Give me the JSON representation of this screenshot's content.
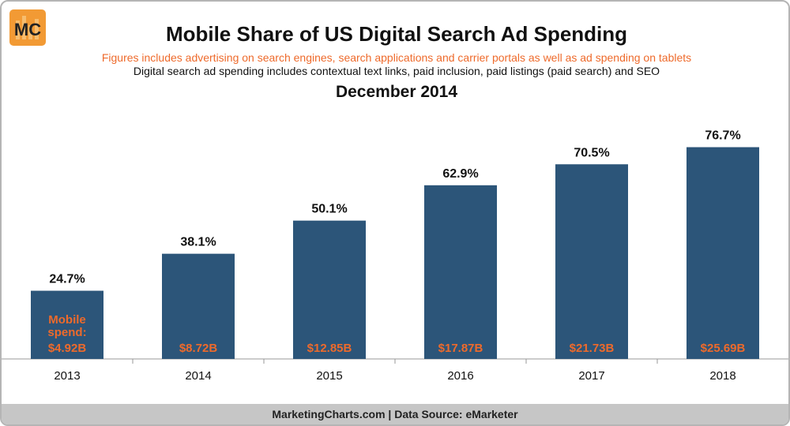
{
  "header": {
    "logo_text": "MC",
    "title": "Mobile Share of US Digital Search Ad Spending",
    "subtitle_note": "Figures includes advertising on search engines, search applications and carrier portals as well as ad spending on tablets",
    "subtitle_definition": "Digital search ad spending includes contextual text links, paid inclusion, paid listings (paid search) and SEO",
    "date": "December 2014"
  },
  "footer": {
    "source": "MarketingCharts.com | Data Source: eMarketer"
  },
  "colors": {
    "bar": "#2c5579",
    "accent": "#ee6a2b",
    "logo_bg": "#f29a34",
    "footer_bg": "#c6c6c6"
  },
  "chart_data": {
    "type": "bar",
    "title": "Mobile Share of US Digital Search Ad Spending",
    "categories": [
      "2013",
      "2014",
      "2015",
      "2016",
      "2017",
      "2018"
    ],
    "values": [
      24.7,
      38.1,
      50.1,
      62.9,
      70.5,
      76.7
    ],
    "value_labels": [
      "24.7%",
      "38.1%",
      "50.1%",
      "62.9%",
      "70.5%",
      "76.7%"
    ],
    "spend_labels": [
      "$4.92B",
      "$8.72B",
      "$12.85B",
      "$17.87B",
      "$21.73B",
      "$25.69B"
    ],
    "spend_prefix": [
      "Mobile",
      "spend:"
    ],
    "xlabel": "",
    "ylabel": "",
    "ylim": [
      0,
      100
    ],
    "grid": false
  }
}
